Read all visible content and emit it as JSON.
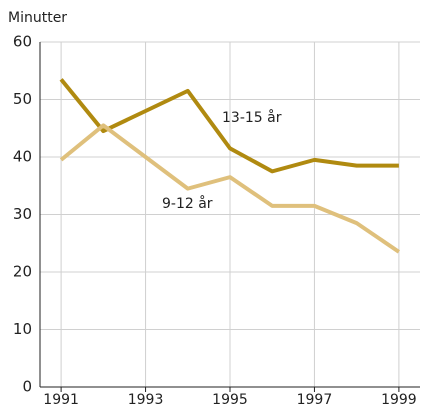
{
  "chart_data": {
    "type": "line",
    "y_label": "Minutter",
    "x": [
      1991,
      1992,
      1993,
      1994,
      1995,
      1996,
      1997,
      1998,
      1999
    ],
    "series": [
      {
        "name": "13-15 år",
        "color": "#b08a10",
        "values": [
          53.5,
          44.5,
          48,
          51.5,
          41.5,
          37.5,
          39.5,
          38.5,
          38.5
        ]
      },
      {
        "name": "9-12 år",
        "color": "#dfc07c",
        "values": [
          39.5,
          45.5,
          40,
          34.5,
          36.5,
          31.5,
          31.5,
          28.5,
          23.5
        ]
      }
    ],
    "xlim": [
      1990.5,
      1999.5
    ],
    "xticks": [
      1991,
      1993,
      1995,
      1997,
      1999
    ],
    "ylim": [
      0,
      60
    ],
    "yticks": [
      0,
      10,
      20,
      30,
      40,
      50,
      60
    ],
    "grid": true
  }
}
